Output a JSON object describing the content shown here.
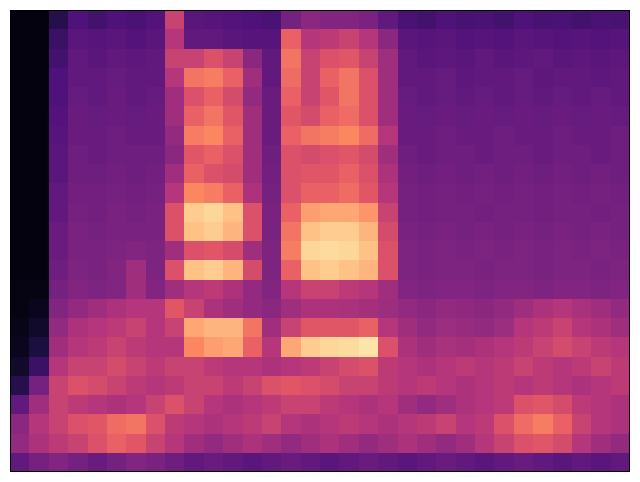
{
  "chart_data": {
    "type": "heatmap",
    "tick_labels": false,
    "zlim": [
      0,
      1
    ],
    "cells": [
      [
        0.02,
        0.02,
        0.15,
        0.25,
        0.22,
        0.25,
        0.24,
        0.26,
        0.55,
        0.28,
        0.27,
        0.26,
        0.25,
        0.24,
        0.35,
        0.4,
        0.38,
        0.38,
        0.36,
        0.3,
        0.24,
        0.22,
        0.25,
        0.23,
        0.24,
        0.22,
        0.25,
        0.23,
        0.24,
        0.22,
        0.24,
        0.23
      ],
      [
        0.02,
        0.02,
        0.2,
        0.28,
        0.27,
        0.28,
        0.26,
        0.28,
        0.5,
        0.3,
        0.3,
        0.28,
        0.27,
        0.27,
        0.65,
        0.5,
        0.52,
        0.55,
        0.5,
        0.4,
        0.28,
        0.27,
        0.28,
        0.26,
        0.27,
        0.26,
        0.28,
        0.27,
        0.26,
        0.27,
        0.26,
        0.27
      ],
      [
        0.02,
        0.02,
        0.22,
        0.3,
        0.28,
        0.3,
        0.29,
        0.3,
        0.55,
        0.55,
        0.6,
        0.55,
        0.4,
        0.3,
        0.7,
        0.55,
        0.6,
        0.62,
        0.55,
        0.45,
        0.3,
        0.28,
        0.29,
        0.28,
        0.3,
        0.28,
        0.29,
        0.3,
        0.28,
        0.29,
        0.28,
        0.29
      ],
      [
        0.02,
        0.02,
        0.25,
        0.3,
        0.3,
        0.31,
        0.3,
        0.3,
        0.5,
        0.7,
        0.72,
        0.65,
        0.45,
        0.3,
        0.68,
        0.55,
        0.65,
        0.7,
        0.6,
        0.45,
        0.3,
        0.3,
        0.31,
        0.29,
        0.3,
        0.3,
        0.31,
        0.29,
        0.3,
        0.3,
        0.29,
        0.3
      ],
      [
        0.02,
        0.02,
        0.25,
        0.31,
        0.3,
        0.32,
        0.3,
        0.31,
        0.45,
        0.6,
        0.65,
        0.58,
        0.42,
        0.32,
        0.65,
        0.55,
        0.62,
        0.7,
        0.6,
        0.45,
        0.31,
        0.3,
        0.31,
        0.3,
        0.31,
        0.3,
        0.31,
        0.3,
        0.31,
        0.3,
        0.31,
        0.3
      ],
      [
        0.02,
        0.02,
        0.26,
        0.32,
        0.31,
        0.32,
        0.31,
        0.32,
        0.45,
        0.65,
        0.7,
        0.62,
        0.45,
        0.32,
        0.62,
        0.58,
        0.65,
        0.68,
        0.6,
        0.45,
        0.32,
        0.31,
        0.32,
        0.31,
        0.32,
        0.31,
        0.32,
        0.31,
        0.32,
        0.31,
        0.32,
        0.31
      ],
      [
        0.02,
        0.02,
        0.27,
        0.32,
        0.32,
        0.33,
        0.32,
        0.32,
        0.42,
        0.72,
        0.75,
        0.65,
        0.45,
        0.32,
        0.65,
        0.7,
        0.72,
        0.75,
        0.68,
        0.5,
        0.32,
        0.32,
        0.33,
        0.32,
        0.32,
        0.33,
        0.32,
        0.32,
        0.33,
        0.32,
        0.32,
        0.33
      ],
      [
        0.02,
        0.02,
        0.28,
        0.33,
        0.32,
        0.33,
        0.33,
        0.33,
        0.4,
        0.62,
        0.65,
        0.6,
        0.45,
        0.33,
        0.6,
        0.58,
        0.6,
        0.62,
        0.58,
        0.45,
        0.33,
        0.32,
        0.33,
        0.33,
        0.32,
        0.33,
        0.33,
        0.32,
        0.33,
        0.33,
        0.32,
        0.33
      ],
      [
        0.02,
        0.02,
        0.28,
        0.33,
        0.33,
        0.34,
        0.33,
        0.34,
        0.45,
        0.65,
        0.6,
        0.58,
        0.45,
        0.34,
        0.6,
        0.62,
        0.62,
        0.65,
        0.6,
        0.48,
        0.34,
        0.33,
        0.34,
        0.33,
        0.34,
        0.33,
        0.34,
        0.33,
        0.34,
        0.33,
        0.34,
        0.33
      ],
      [
        0.02,
        0.02,
        0.3,
        0.34,
        0.34,
        0.35,
        0.34,
        0.35,
        0.5,
        0.75,
        0.72,
        0.65,
        0.48,
        0.35,
        0.6,
        0.65,
        0.65,
        0.68,
        0.62,
        0.5,
        0.35,
        0.34,
        0.35,
        0.34,
        0.35,
        0.34,
        0.35,
        0.34,
        0.35,
        0.34,
        0.35,
        0.34
      ],
      [
        0.02,
        0.02,
        0.3,
        0.35,
        0.34,
        0.36,
        0.35,
        0.36,
        0.6,
        0.9,
        0.92,
        0.88,
        0.6,
        0.36,
        0.65,
        0.8,
        0.82,
        0.82,
        0.78,
        0.55,
        0.35,
        0.34,
        0.35,
        0.35,
        0.34,
        0.35,
        0.35,
        0.34,
        0.35,
        0.35,
        0.34,
        0.35
      ],
      [
        0.02,
        0.02,
        0.32,
        0.36,
        0.35,
        0.36,
        0.36,
        0.36,
        0.6,
        0.88,
        0.9,
        0.85,
        0.6,
        0.36,
        0.7,
        0.88,
        0.9,
        0.9,
        0.85,
        0.58,
        0.36,
        0.35,
        0.36,
        0.35,
        0.36,
        0.35,
        0.36,
        0.35,
        0.36,
        0.35,
        0.36,
        0.35
      ],
      [
        0.02,
        0.02,
        0.32,
        0.36,
        0.36,
        0.37,
        0.38,
        0.37,
        0.45,
        0.6,
        0.62,
        0.58,
        0.45,
        0.37,
        0.72,
        0.92,
        0.93,
        0.92,
        0.88,
        0.6,
        0.37,
        0.36,
        0.37,
        0.36,
        0.37,
        0.36,
        0.37,
        0.36,
        0.37,
        0.36,
        0.37,
        0.36
      ],
      [
        0.02,
        0.02,
        0.33,
        0.37,
        0.36,
        0.38,
        0.45,
        0.37,
        0.6,
        0.88,
        0.9,
        0.85,
        0.58,
        0.37,
        0.65,
        0.88,
        0.9,
        0.88,
        0.85,
        0.6,
        0.37,
        0.36,
        0.37,
        0.37,
        0.36,
        0.37,
        0.37,
        0.36,
        0.37,
        0.37,
        0.36,
        0.37
      ],
      [
        0.03,
        0.03,
        0.35,
        0.38,
        0.37,
        0.38,
        0.45,
        0.38,
        0.45,
        0.5,
        0.52,
        0.48,
        0.42,
        0.38,
        0.5,
        0.55,
        0.55,
        0.52,
        0.5,
        0.45,
        0.38,
        0.37,
        0.38,
        0.38,
        0.37,
        0.38,
        0.38,
        0.37,
        0.38,
        0.38,
        0.37,
        0.38
      ],
      [
        0.03,
        0.05,
        0.38,
        0.42,
        0.45,
        0.48,
        0.5,
        0.5,
        0.62,
        0.55,
        0.48,
        0.45,
        0.42,
        0.4,
        0.45,
        0.48,
        0.48,
        0.47,
        0.46,
        0.44,
        0.42,
        0.4,
        0.42,
        0.41,
        0.4,
        0.42,
        0.45,
        0.48,
        0.5,
        0.47,
        0.45,
        0.42
      ],
      [
        0.04,
        0.08,
        0.42,
        0.48,
        0.5,
        0.52,
        0.55,
        0.5,
        0.55,
        0.82,
        0.85,
        0.85,
        0.7,
        0.45,
        0.55,
        0.62,
        0.62,
        0.62,
        0.65,
        0.5,
        0.45,
        0.42,
        0.44,
        0.43,
        0.42,
        0.44,
        0.5,
        0.52,
        0.55,
        0.5,
        0.48,
        0.45
      ],
      [
        0.05,
        0.12,
        0.45,
        0.5,
        0.52,
        0.55,
        0.52,
        0.5,
        0.5,
        0.75,
        0.8,
        0.82,
        0.65,
        0.5,
        0.82,
        0.9,
        0.92,
        0.93,
        0.95,
        0.6,
        0.48,
        0.45,
        0.47,
        0.46,
        0.48,
        0.5,
        0.52,
        0.55,
        0.58,
        0.55,
        0.52,
        0.5
      ],
      [
        0.08,
        0.2,
        0.5,
        0.55,
        0.55,
        0.58,
        0.55,
        0.52,
        0.55,
        0.55,
        0.52,
        0.5,
        0.5,
        0.48,
        0.5,
        0.52,
        0.55,
        0.58,
        0.6,
        0.52,
        0.5,
        0.48,
        0.5,
        0.52,
        0.5,
        0.52,
        0.55,
        0.52,
        0.5,
        0.52,
        0.55,
        0.52
      ],
      [
        0.15,
        0.35,
        0.55,
        0.6,
        0.58,
        0.55,
        0.52,
        0.5,
        0.52,
        0.55,
        0.55,
        0.52,
        0.55,
        0.6,
        0.62,
        0.6,
        0.58,
        0.55,
        0.55,
        0.52,
        0.5,
        0.52,
        0.5,
        0.48,
        0.5,
        0.52,
        0.5,
        0.52,
        0.5,
        0.48,
        0.5,
        0.52
      ],
      [
        0.3,
        0.45,
        0.55,
        0.52,
        0.5,
        0.48,
        0.5,
        0.55,
        0.6,
        0.55,
        0.5,
        0.48,
        0.5,
        0.52,
        0.55,
        0.55,
        0.52,
        0.5,
        0.48,
        0.5,
        0.45,
        0.42,
        0.45,
        0.48,
        0.5,
        0.52,
        0.6,
        0.62,
        0.58,
        0.52,
        0.5,
        0.48
      ],
      [
        0.4,
        0.5,
        0.55,
        0.6,
        0.62,
        0.68,
        0.7,
        0.6,
        0.52,
        0.5,
        0.48,
        0.5,
        0.52,
        0.55,
        0.5,
        0.48,
        0.5,
        0.52,
        0.5,
        0.48,
        0.5,
        0.52,
        0.55,
        0.5,
        0.52,
        0.6,
        0.68,
        0.72,
        0.65,
        0.55,
        0.5,
        0.48
      ],
      [
        0.42,
        0.48,
        0.52,
        0.55,
        0.6,
        0.65,
        0.62,
        0.55,
        0.5,
        0.45,
        0.42,
        0.45,
        0.48,
        0.45,
        0.42,
        0.45,
        0.48,
        0.45,
        0.42,
        0.45,
        0.48,
        0.45,
        0.42,
        0.45,
        0.5,
        0.55,
        0.6,
        0.62,
        0.58,
        0.5,
        0.45,
        0.42
      ],
      [
        0.3,
        0.35,
        0.38,
        0.35,
        0.32,
        0.35,
        0.38,
        0.36,
        0.33,
        0.3,
        0.32,
        0.3,
        0.28,
        0.3,
        0.32,
        0.3,
        0.28,
        0.3,
        0.32,
        0.3,
        0.28,
        0.3,
        0.32,
        0.3,
        0.28,
        0.3,
        0.32,
        0.3,
        0.28,
        0.3,
        0.28,
        0.3
      ]
    ]
  }
}
